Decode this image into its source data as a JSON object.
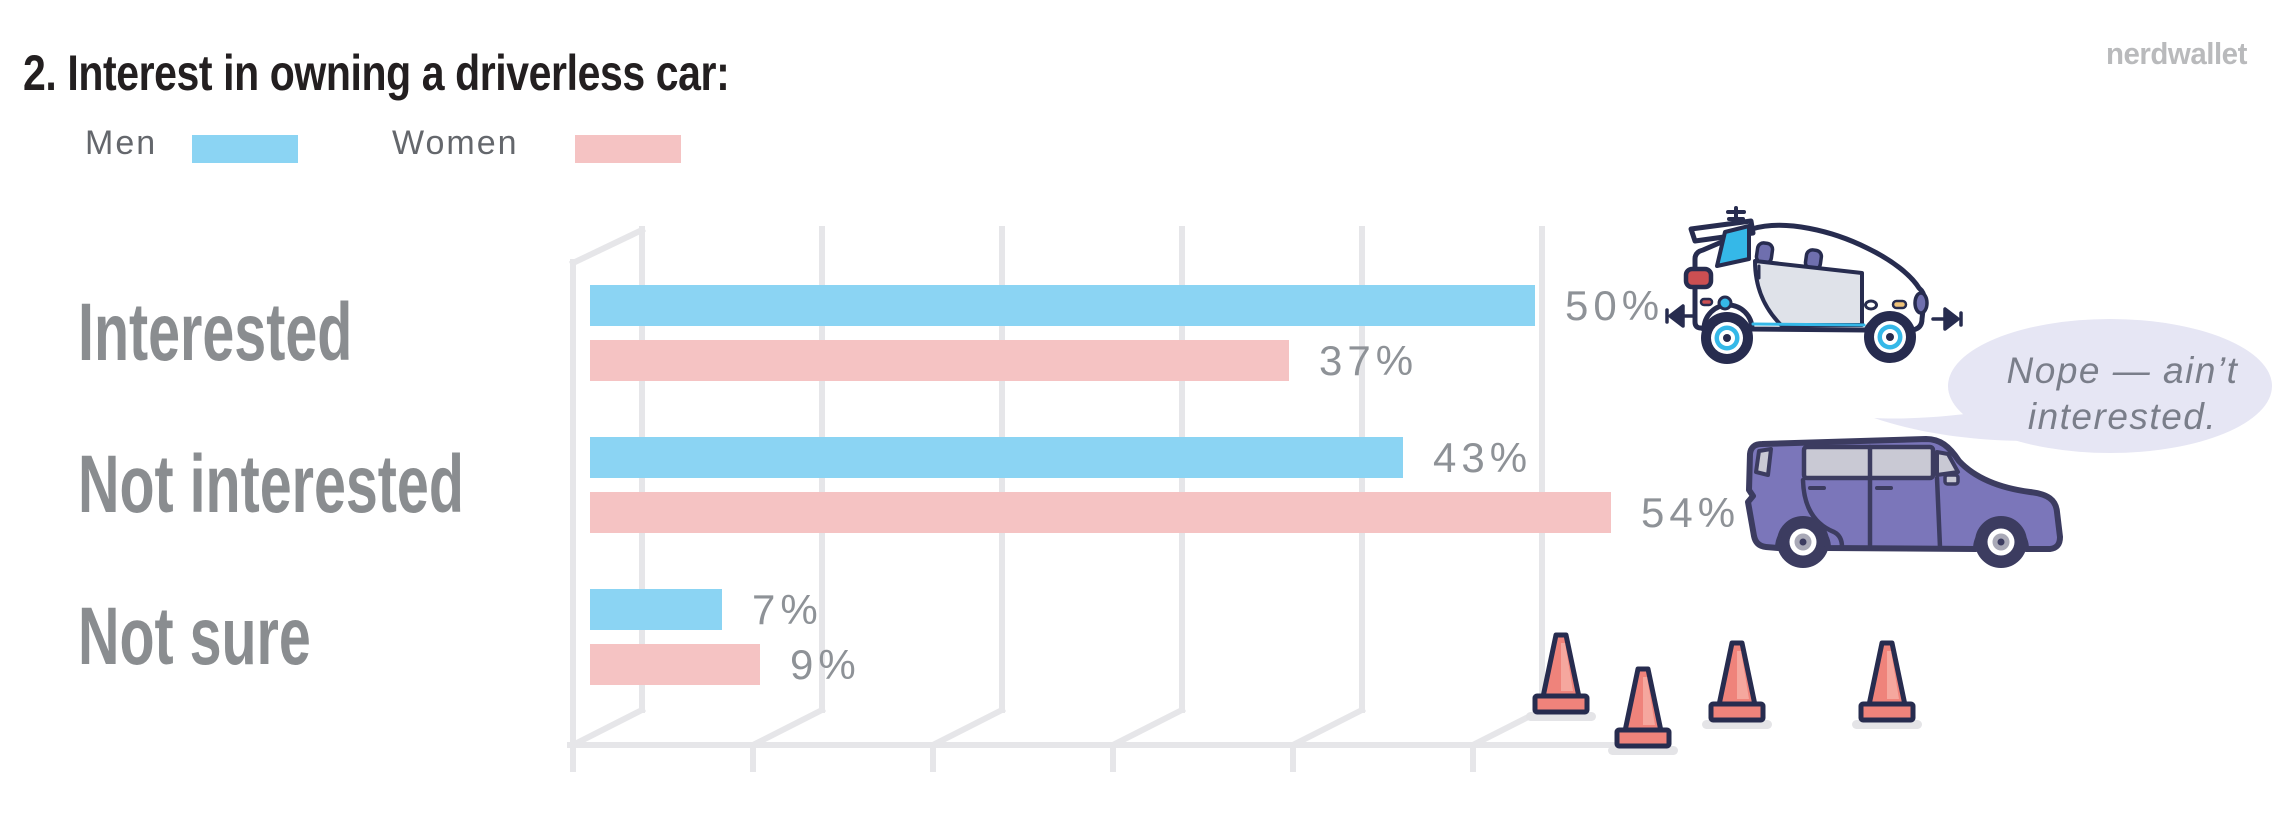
{
  "header": {
    "title": "2. Interest in owning a driverless car:",
    "brand": "nerdwallet"
  },
  "legend": {
    "items": [
      {
        "label": "Men",
        "color": "#8bd4f3"
      },
      {
        "label": "Women",
        "color": "#f5c3c3"
      }
    ]
  },
  "chart_data": {
    "type": "bar",
    "orientation": "horizontal",
    "title": "2. Interest in owning a driverless car:",
    "categories": [
      "Interested",
      "Not interested",
      "Not sure"
    ],
    "series": [
      {
        "name": "Men",
        "color": "#8bd4f3",
        "values": [
          50,
          43,
          7
        ]
      },
      {
        "name": "Women",
        "color": "#f5c3c3",
        "values": [
          37,
          54,
          9
        ]
      }
    ],
    "unit": "%",
    "value_labels": true,
    "xlim": [
      0,
      57
    ],
    "gridline_count": 6,
    "grid": true,
    "grid_color": "#e6e6e9",
    "legend_position": "top-left"
  },
  "annotations": {
    "speech_bubble": {
      "text_line1": "Nope — ain’t",
      "text_line2": "interested."
    }
  },
  "illustrations": [
    {
      "name": "driverless-car",
      "description": "white self-driving car with roof and bumper sensors"
    },
    {
      "name": "purple-suv",
      "description": "purple boxy SUV"
    },
    {
      "name": "traffic-cones",
      "description": "orange traffic cones",
      "count": 4
    }
  ],
  "colors": {
    "title_text": "#231f20",
    "category_gray": "#8a8d90",
    "value_gray": "#8e9297",
    "legend_gray": "#64676c",
    "grid": "#e6e6e9",
    "logo_gray": "#b9babc",
    "bubble_bg": "#e6e6f4",
    "bubble_text": "#7a7e8a",
    "cone_coral": "#ef837b",
    "suv_purple": "#7b76ba",
    "outline_navy": "#272c4f",
    "accent_cyan": "#35b8e8"
  }
}
